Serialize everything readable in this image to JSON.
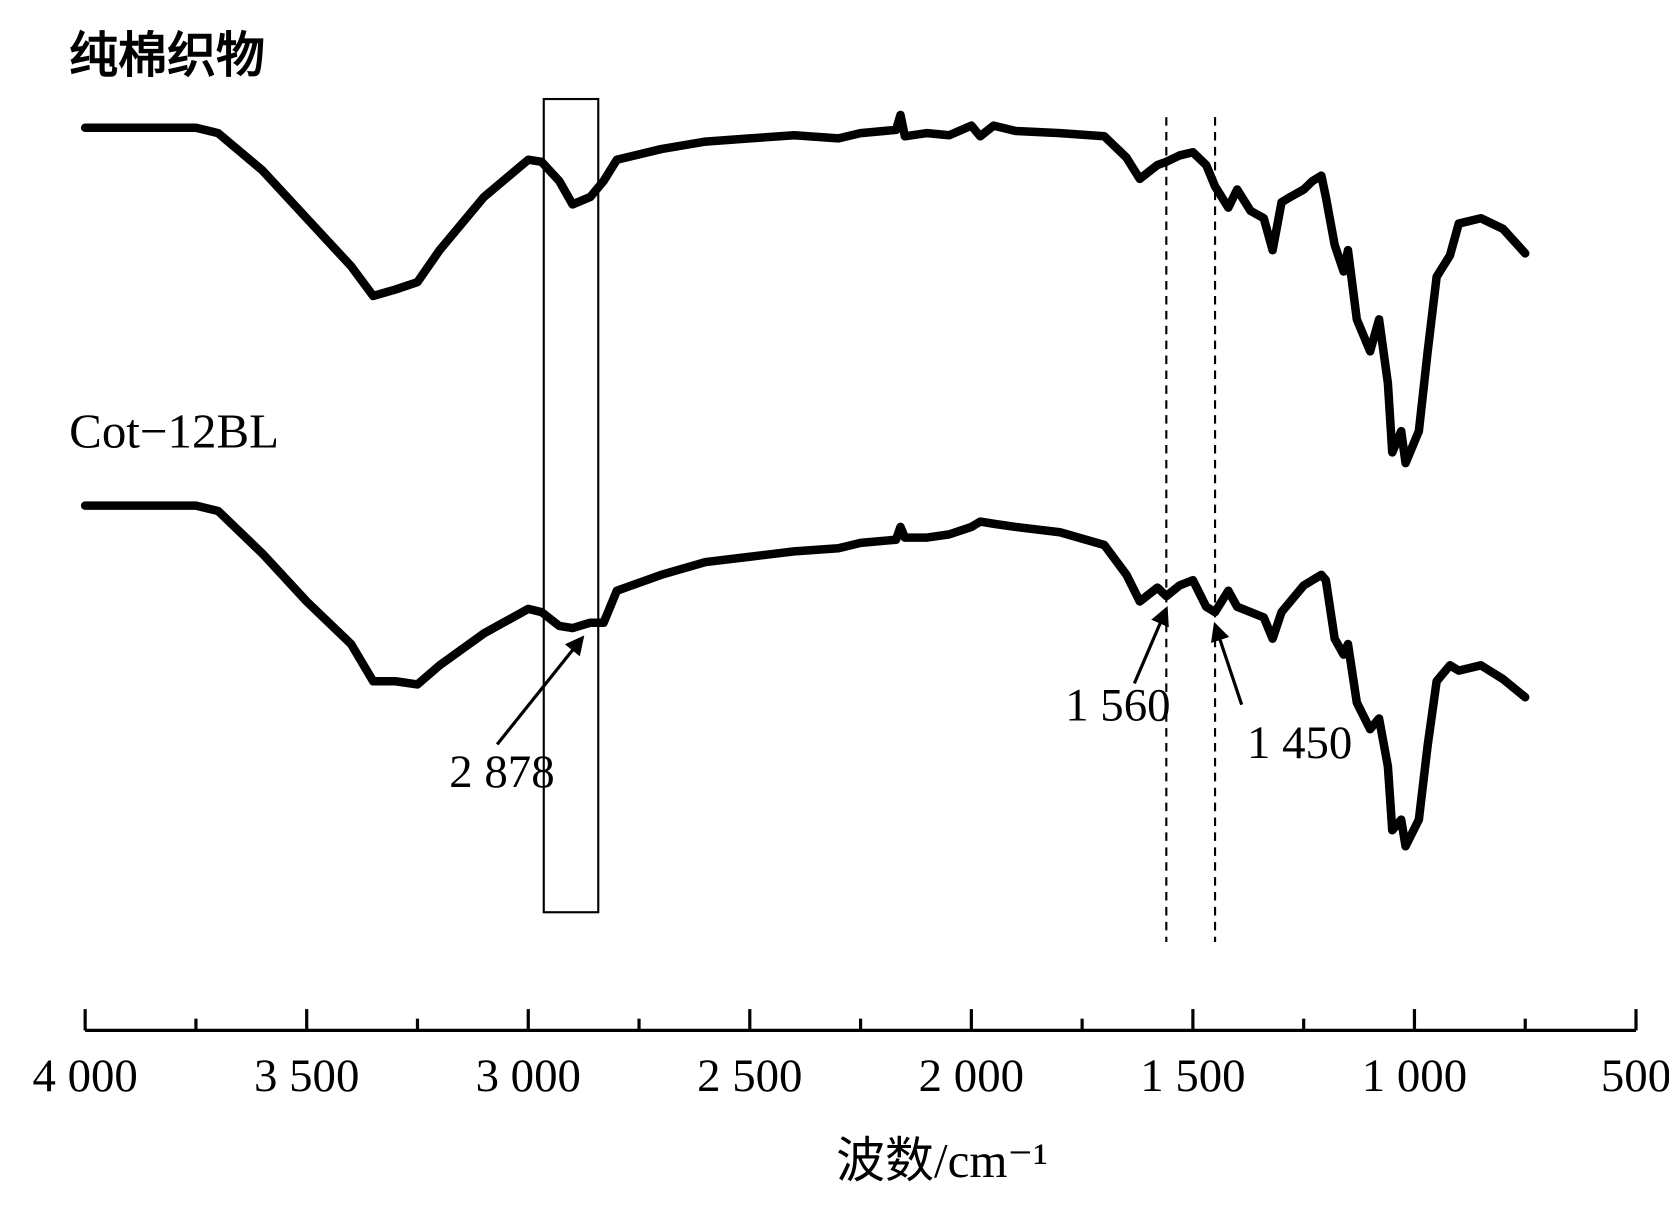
{
  "chart_data": {
    "type": "line",
    "x_label": "波数/cm⁻¹",
    "xlim": [
      4000,
      500
    ],
    "ylim": [
      0,
      95
    ],
    "xticks": [
      {
        "value": 4000,
        "label": "4 000"
      },
      {
        "value": 3500,
        "label": "3 500"
      },
      {
        "value": 3000,
        "label": "3 000"
      },
      {
        "value": 2500,
        "label": "2 500"
      },
      {
        "value": 2000,
        "label": "2 000"
      },
      {
        "value": 1500,
        "label": "1 500"
      },
      {
        "value": 1000,
        "label": "1 000"
      },
      500
    ],
    "xminor_ticks": [
      3750,
      3250,
      2750,
      2250,
      1750,
      1250,
      750
    ],
    "x": [
      4000,
      3750,
      3700,
      3600,
      3500,
      3400,
      3350,
      3300,
      3250,
      3200,
      3100,
      3000,
      2970,
      2930,
      2900,
      2860,
      2830,
      2800,
      2700,
      2600,
      2500,
      2400,
      2300,
      2250,
      2170,
      2160,
      2150,
      2100,
      2050,
      2000,
      1980,
      1950,
      1900,
      1800,
      1700,
      1650,
      1620,
      1580,
      1560,
      1530,
      1500,
      1470,
      1450,
      1420,
      1400,
      1370,
      1340,
      1320,
      1300,
      1280,
      1250,
      1230,
      1210,
      1200,
      1180,
      1160,
      1150,
      1130,
      1100,
      1080,
      1060,
      1050,
      1030,
      1020,
      990,
      970,
      950,
      920,
      900,
      850,
      800,
      750
    ],
    "series": [
      {
        "name": "纯棉织物",
        "color": "#000000",
        "values": [
          83,
          83,
          82.5,
          79,
          74.5,
          70,
          67.2,
          67.8,
          68.5,
          71.5,
          76.5,
          80,
          79.8,
          78,
          75.8,
          76.5,
          78,
          80,
          81,
          81.7,
          82,
          82.3,
          82,
          82.5,
          82.8,
          84.2,
          82.2,
          82.5,
          82.3,
          83.2,
          82.2,
          83.2,
          82.7,
          82.5,
          82.2,
          80.2,
          78.2,
          79.5,
          79.8,
          80.4,
          80.7,
          79.5,
          77.5,
          75.5,
          77.2,
          75.2,
          74.5,
          71.5,
          76,
          76.5,
          77.2,
          78,
          78.5,
          76.5,
          72,
          69.5,
          71.5,
          65,
          62,
          65,
          59,
          52.5,
          54.5,
          51.5,
          54.5,
          62,
          69,
          71,
          74,
          74.5,
          73.5,
          71.2
        ]
      },
      {
        "name": "Cot−12BL",
        "color": "#000000",
        "values": [
          47.5,
          47.5,
          47,
          43,
          38.5,
          34.5,
          31,
          31,
          30.7,
          32.5,
          35.5,
          37.8,
          37.5,
          36.2,
          36,
          36.5,
          36.5,
          39.5,
          41,
          42.2,
          42.7,
          43.2,
          43.5,
          44,
          44.3,
          45.5,
          44.5,
          44.5,
          44.8,
          45.5,
          46,
          45.8,
          45.5,
          45,
          43.8,
          41,
          38.5,
          39.8,
          39,
          40,
          40.5,
          38,
          37.5,
          39.5,
          38,
          37.5,
          37,
          35,
          37.5,
          38.5,
          40,
          40.5,
          41,
          40.5,
          35,
          33.5,
          34.5,
          29,
          26.5,
          27.5,
          23,
          17,
          18,
          15.5,
          18,
          25,
          31,
          32.5,
          32,
          32.5,
          31.2,
          29.5
        ]
      }
    ],
    "annotations": [
      {
        "value": 2878,
        "label": "2 878"
      },
      {
        "value": 1560,
        "label": "1 560"
      },
      {
        "value": 1450,
        "label": "1 450"
      }
    ],
    "reference_lines": [
      1560,
      1450
    ],
    "highlight_range": [
      2965,
      2842
    ]
  }
}
